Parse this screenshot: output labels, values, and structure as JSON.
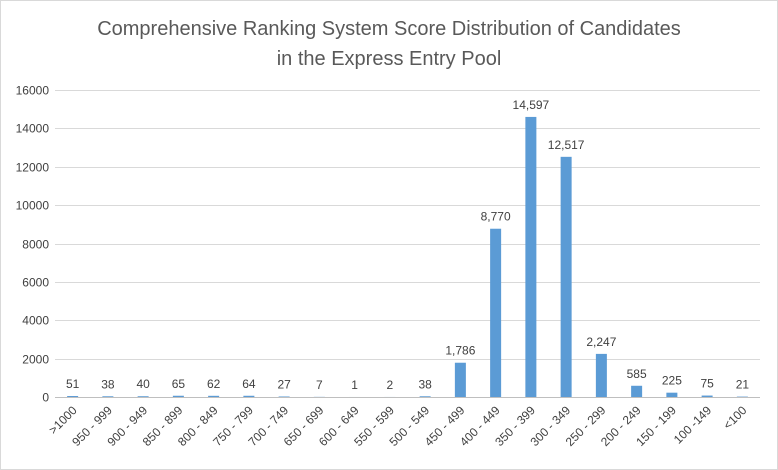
{
  "chart_data": {
    "type": "bar",
    "title_lines": [
      "Comprehensive  Ranking System Score Distribution of Candidates",
      "in the Express Entry Pool"
    ],
    "xlabel": "",
    "ylabel": "",
    "ylim": [
      0,
      16000
    ],
    "yticks": [
      0,
      2000,
      4000,
      6000,
      8000,
      10000,
      12000,
      14000,
      16000
    ],
    "grid": true,
    "legend": "none",
    "bar_color": "#5b9bd5",
    "categories": [
      ">1000",
      "950 - 999",
      "900 - 949",
      "850 - 899",
      "800 - 849",
      "750 - 799",
      "700 - 749",
      "650 - 699",
      "600 - 649",
      "550 - 599",
      "500 - 549",
      "450 - 499",
      "400 - 449",
      "350 - 399",
      "300 - 349",
      "250 - 299",
      "200 - 249",
      "150 - 199",
      "100 -149",
      "<100"
    ],
    "values": [
      51,
      38,
      40,
      65,
      62,
      64,
      27,
      7,
      1,
      2,
      38,
      1786,
      8770,
      14597,
      12517,
      2247,
      585,
      225,
      75,
      21
    ],
    "data_labels": [
      "51",
      "38",
      "40",
      "65",
      "62",
      "64",
      "27",
      "7",
      "1",
      "2",
      "38",
      "1,786",
      "8,770",
      "14,597",
      "12,517",
      "2,247",
      "585",
      "225",
      "75",
      "21"
    ]
  }
}
